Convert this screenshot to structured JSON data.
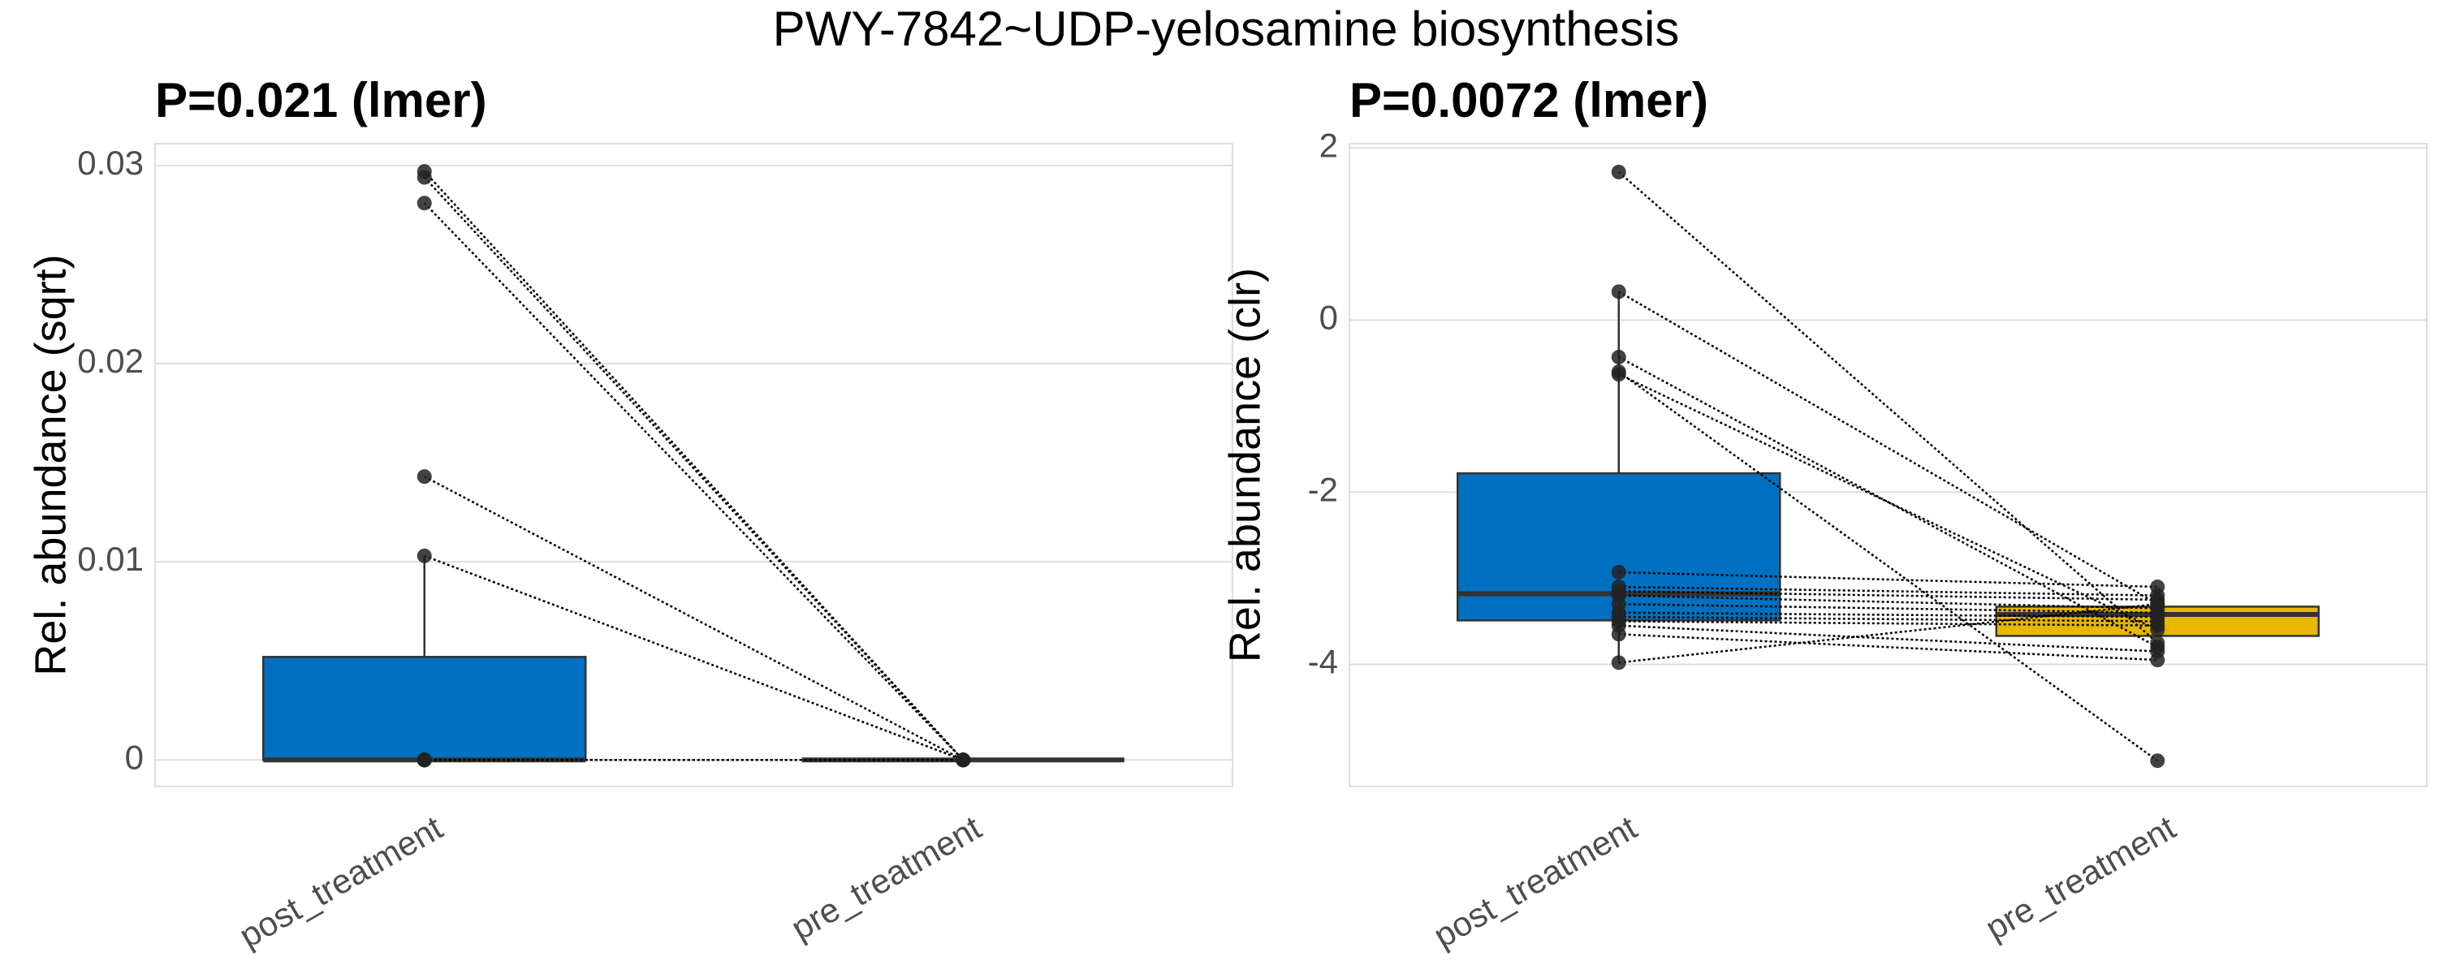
{
  "title": "PWY-7842~UDP-yelosamine biosynthesis",
  "chart_data": [
    {
      "type": "box",
      "title": "P=0.021 (lmer)",
      "y_label": "Rel. abundance (sqrt)",
      "categories": [
        "post_treatment",
        "pre_treatment"
      ],
      "ylim": [
        -0.00134,
        0.0311
      ],
      "yticks": [
        0,
        0.01,
        0.02,
        0.03
      ],
      "grid": true,
      "boxes": [
        {
          "color": "#0070c0",
          "q1": 0,
          "median": 0,
          "q3": 0.0052,
          "whisker_low": 0,
          "whisker_high": 0.0103,
          "points": [
            0.0297,
            0.0294,
            0.0281,
            0.0143,
            0.0103,
            0,
            0,
            0,
            0,
            0,
            0,
            0,
            0,
            0,
            0,
            0
          ]
        },
        {
          "color": "#e8b800",
          "q1": 0,
          "median": 0,
          "q3": 0,
          "whisker_low": 0,
          "whisker_high": 0,
          "points": [
            0,
            0,
            0,
            0,
            0,
            0,
            0,
            0,
            0,
            0,
            0,
            0,
            0,
            0,
            0,
            0
          ]
        }
      ]
    },
    {
      "type": "box",
      "title": "P=0.0072 (lmer)",
      "y_label": "Rel. abundance (clr)",
      "categories": [
        "post_treatment",
        "pre_treatment"
      ],
      "ylim": [
        -5.42,
        2.05
      ],
      "yticks": [
        -4,
        -2,
        0,
        2
      ],
      "grid": true,
      "boxes": [
        {
          "color": "#0070c0",
          "q1": -3.49,
          "median": -3.18,
          "q3": -1.78,
          "whisker_low": -3.98,
          "whisker_high": 0.33,
          "points": [
            1.72,
            0.33,
            -0.43,
            -0.6,
            -0.63,
            -2.93,
            -3.1,
            -3.15,
            -3.2,
            -3.3,
            -3.4,
            -3.45,
            -3.5,
            -3.55,
            -3.65,
            -3.98
          ]
        },
        {
          "color": "#e8b800",
          "q1": -3.67,
          "median": -3.42,
          "q3": -3.33,
          "whisker_low": -3.67,
          "whisker_high": -3.33,
          "points": [
            -3.75,
            -3.3,
            -3.8,
            -5.12,
            -3.6,
            -3.1,
            -3.2,
            -3.25,
            -3.35,
            -3.4,
            -3.45,
            -3.5,
            -3.55,
            -3.85,
            -3.95,
            -3.3
          ]
        }
      ]
    }
  ]
}
